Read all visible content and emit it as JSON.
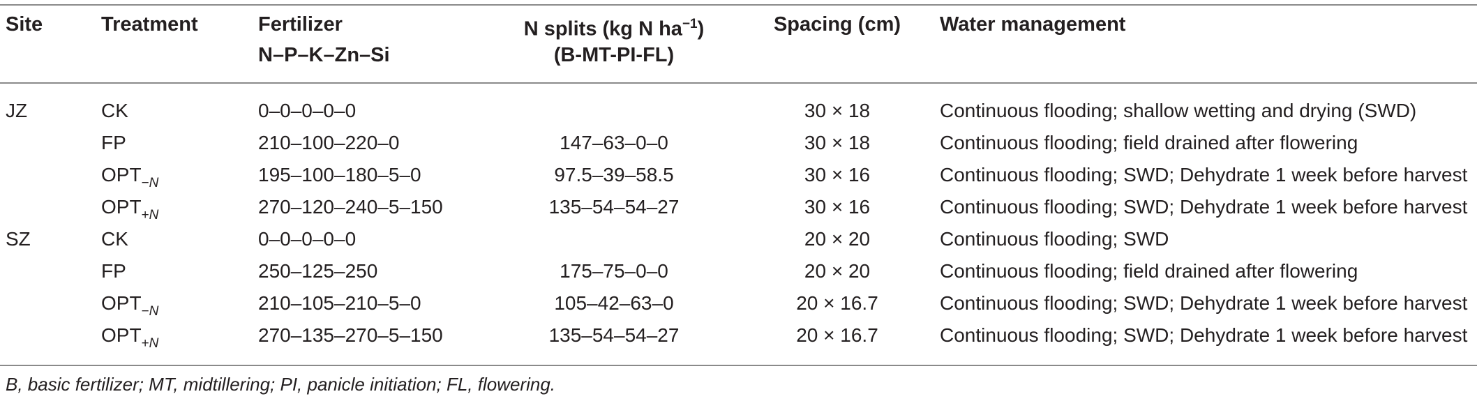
{
  "headers": {
    "site": "Site",
    "treatment": "Treatment",
    "fertilizer_line1": "Fertilizer",
    "fertilizer_line2": "N–P–K–Zn–Si",
    "nsplits_line1": "N splits (kg N ha",
    "nsplits_sup": "−1",
    "nsplits_line1_end": ")",
    "nsplits_line2": "(B-MT-PI-FL)",
    "spacing": "Spacing (cm)",
    "water": "Water management"
  },
  "rows": [
    {
      "site": "JZ",
      "treatment": "CK",
      "sub": "",
      "fert": "0–0–0–0–0",
      "nsplit": "",
      "spacing": "30 × 18",
      "water": "Continuous flooding; shallow wetting and drying (SWD)"
    },
    {
      "site": "",
      "treatment": "FP",
      "sub": "",
      "fert": "210–100–220–0",
      "nsplit": "147–63–0–0",
      "spacing": "30 × 18",
      "water": "Continuous flooding; field drained after flowering"
    },
    {
      "site": "",
      "treatment": "OPT",
      "sub": "−N",
      "fert": "195–100–180–5–0",
      "nsplit": "97.5–39–58.5",
      "spacing": "30 × 16",
      "water": "Continuous flooding; SWD; Dehydrate 1 week before harvest"
    },
    {
      "site": "",
      "treatment": "OPT",
      "sub": "+N",
      "fert": "270–120–240–5–150",
      "nsplit": "135–54–54–27",
      "spacing": "30 × 16",
      "water": "Continuous flooding; SWD; Dehydrate 1 week before harvest"
    },
    {
      "site": "SZ",
      "treatment": "CK",
      "sub": "",
      "fert": "0–0–0–0–0",
      "nsplit": "",
      "spacing": "20 × 20",
      "water": "Continuous flooding; SWD"
    },
    {
      "site": "",
      "treatment": "FP",
      "sub": "",
      "fert": "250–125–250",
      "nsplit": "175–75–0–0",
      "spacing": "20 × 20",
      "water": "Continuous flooding; field drained after flowering"
    },
    {
      "site": "",
      "treatment": "OPT",
      "sub": "−N",
      "fert": "210–105–210–5–0",
      "nsplit": "105–42–63–0",
      "spacing": "20 × 16.7",
      "water": "Continuous flooding; SWD; Dehydrate 1 week before harvest"
    },
    {
      "site": "",
      "treatment": "OPT",
      "sub": "+N",
      "fert": "270–135–270–5–150",
      "nsplit": "135–54–54–27",
      "spacing": "20 × 16.7",
      "water": "Continuous flooding; SWD; Dehydrate 1 week before harvest"
    }
  ],
  "footnote": "B, basic fertilizer; MT, midtillering; PI, panicle initiation; FL, flowering."
}
